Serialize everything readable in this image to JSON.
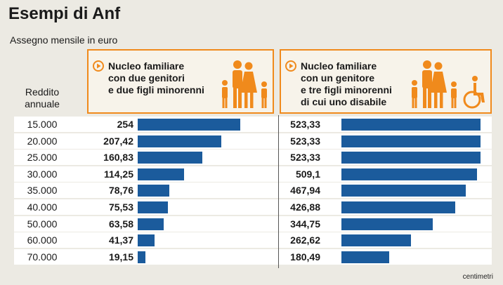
{
  "title": "Esempi di Anf",
  "subtitle": "Assegno mensile in euro",
  "row_header": "Reddito\nannuale",
  "colors": {
    "bar": "#1b5b9c",
    "accent": "#f08a1c"
  },
  "source": "centimetri",
  "chart_data": {
    "type": "bar",
    "orientation": "horizontal",
    "title": "Esempi di Anf",
    "subtitle": "Assegno mensile in euro",
    "categories": [
      "15.000",
      "20.000",
      "25.000",
      "30.000",
      "35.000",
      "40.000",
      "50.000",
      "60.000",
      "70.000"
    ],
    "series": [
      {
        "name": "Nucleo familiare\ncon due genitori\ne due figli minorenni",
        "values": [
          254,
          207.42,
          160.83,
          114.25,
          78.76,
          75.53,
          63.58,
          41.37,
          19.15
        ],
        "labels": [
          "254",
          "207,42",
          "160,83",
          "114,25",
          "78,76",
          "75,53",
          "63,58",
          "41,37",
          "19,15"
        ],
        "icon": "family-two-parents-two-children-icon"
      },
      {
        "name": "Nucleo familiare\ncon un genitore\ne tre figli minorenni\ndi cui uno disabile",
        "values": [
          523.33,
          523.33,
          523.33,
          509.1,
          467.94,
          426.88,
          344.75,
          262.62,
          180.49
        ],
        "labels": [
          "523,33",
          "523,33",
          "523,33",
          "509,1",
          "467,94",
          "426,88",
          "344,75",
          "262,62",
          "180,49"
        ],
        "icon": "family-one-parent-three-children-wheelchair-icon"
      }
    ],
    "xlim": [
      0,
      530
    ]
  }
}
